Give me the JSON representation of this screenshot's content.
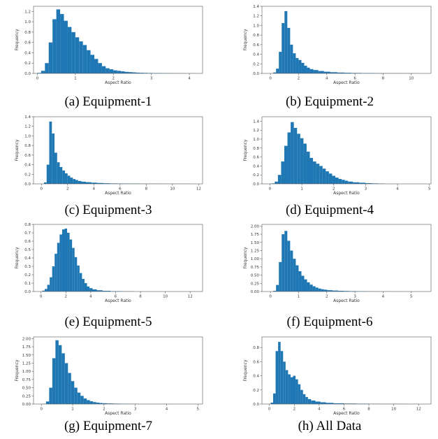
{
  "chart_data": [
    {
      "type": "bar",
      "caption": "(a) Equipment-1",
      "xlabel": "Aspect Ratio",
      "ylabel": "Frequency",
      "xlim": [
        -0.1,
        4.35
      ],
      "ylim": [
        0,
        1.3
      ],
      "xticks": [
        0,
        1,
        2,
        3,
        4
      ],
      "yticks": [
        0.0,
        0.2,
        0.4,
        0.6,
        0.8,
        1.0,
        1.2
      ],
      "x": [
        0.05,
        0.15,
        0.25,
        0.35,
        0.45,
        0.55,
        0.65,
        0.75,
        0.85,
        0.95,
        1.05,
        1.15,
        1.25,
        1.35,
        1.45,
        1.55,
        1.65,
        1.75,
        1.85,
        1.95,
        2.05,
        2.15,
        2.25,
        2.35,
        2.45,
        2.55,
        2.65,
        2.75,
        2.85,
        2.95,
        3.1,
        3.3,
        3.5,
        3.7,
        3.9,
        4.1
      ],
      "values": [
        0.01,
        0.05,
        0.2,
        0.6,
        1.05,
        1.24,
        1.15,
        1.02,
        0.9,
        0.8,
        0.7,
        0.62,
        0.55,
        0.45,
        0.36,
        0.28,
        0.2,
        0.14,
        0.1,
        0.08,
        0.06,
        0.05,
        0.04,
        0.03,
        0.025,
        0.02,
        0.015,
        0.012,
        0.01,
        0.008,
        0.006,
        0.005,
        0.004,
        0.003,
        0.002,
        0.002
      ]
    },
    {
      "type": "bar",
      "caption": "(b) Equipment-2",
      "xlabel": "Aspect Ratio",
      "ylabel": "Frequency",
      "xlim": [
        -0.6,
        11.4
      ],
      "ylim": [
        0,
        1.4
      ],
      "xticks": [
        0,
        2,
        4,
        6,
        8,
        10
      ],
      "yticks": [
        0.0,
        0.2,
        0.4,
        0.6,
        0.8,
        1.0,
        1.2,
        1.4
      ],
      "x": [
        0.3,
        0.5,
        0.7,
        0.9,
        1.1,
        1.3,
        1.5,
        1.7,
        1.9,
        2.1,
        2.3,
        2.5,
        2.7,
        2.9,
        3.2,
        3.6,
        4.0,
        4.5,
        5.0,
        5.5,
        6.0,
        7.0,
        8.0,
        9.0,
        10.0
      ],
      "values": [
        0.02,
        0.1,
        0.45,
        1.05,
        1.3,
        0.95,
        0.6,
        0.42,
        0.32,
        0.28,
        0.22,
        0.16,
        0.12,
        0.09,
        0.07,
        0.05,
        0.035,
        0.025,
        0.018,
        0.013,
        0.009,
        0.006,
        0.004,
        0.003,
        0.002
      ]
    },
    {
      "type": "bar",
      "caption": "(c) Equipment-3",
      "xlabel": "Aspect Ratio",
      "ylabel": "Frequency",
      "xlim": [
        -0.6,
        12.3
      ],
      "ylim": [
        0,
        1.4
      ],
      "xticks": [
        0,
        2,
        4,
        6,
        8,
        10,
        12
      ],
      "yticks": [
        0.0,
        0.2,
        0.4,
        0.6,
        0.8,
        1.0,
        1.2,
        1.4
      ],
      "x": [
        0.3,
        0.5,
        0.7,
        0.9,
        1.1,
        1.3,
        1.5,
        1.7,
        1.9,
        2.1,
        2.3,
        2.5,
        2.7,
        2.9,
        3.2,
        3.6,
        4.0,
        4.5,
        5.0,
        5.5,
        6.0,
        7.0,
        8.0,
        9.0,
        10.0,
        11.0
      ],
      "values": [
        0.03,
        0.4,
        1.3,
        1.05,
        0.65,
        0.45,
        0.35,
        0.28,
        0.22,
        0.17,
        0.13,
        0.1,
        0.08,
        0.06,
        0.045,
        0.035,
        0.025,
        0.018,
        0.013,
        0.009,
        0.007,
        0.005,
        0.004,
        0.003,
        0.002,
        0.002
      ]
    },
    {
      "type": "bar",
      "caption": "(d) Equipment-4",
      "xlabel": "Aspect Ratio",
      "ylabel": "Frequency",
      "xlim": [
        -0.25,
        5.05
      ],
      "ylim": [
        0,
        1.5
      ],
      "xticks": [
        0,
        1,
        2,
        3,
        4,
        5
      ],
      "yticks": [
        0.0,
        0.2,
        0.4,
        0.6,
        0.8,
        1.0,
        1.2,
        1.4
      ],
      "x": [
        0.1,
        0.2,
        0.3,
        0.4,
        0.5,
        0.6,
        0.7,
        0.8,
        0.9,
        1.0,
        1.1,
        1.2,
        1.3,
        1.4,
        1.5,
        1.6,
        1.7,
        1.8,
        1.9,
        2.0,
        2.1,
        2.2,
        2.3,
        2.4,
        2.5,
        2.7,
        2.9,
        3.1,
        3.3,
        3.5
      ],
      "values": [
        0.01,
        0.05,
        0.2,
        0.5,
        0.85,
        1.15,
        1.38,
        1.25,
        1.12,
        1.02,
        0.9,
        0.72,
        0.58,
        0.5,
        0.45,
        0.4,
        0.34,
        0.28,
        0.23,
        0.18,
        0.14,
        0.11,
        0.09,
        0.07,
        0.05,
        0.035,
        0.025,
        0.015,
        0.01,
        0.006
      ]
    },
    {
      "type": "bar",
      "caption": "(e) Equipment-5",
      "xlabel": "Aspect Ratio",
      "ylabel": "Frequency",
      "xlim": [
        -0.6,
        13.0
      ],
      "ylim": [
        0,
        0.8
      ],
      "xticks": [
        0,
        2,
        4,
        6,
        8,
        10,
        12
      ],
      "yticks": [
        0.0,
        0.1,
        0.2,
        0.3,
        0.4,
        0.5,
        0.6,
        0.7,
        0.8
      ],
      "x": [
        0.2,
        0.4,
        0.6,
        0.8,
        1.0,
        1.2,
        1.4,
        1.6,
        1.8,
        2.0,
        2.2,
        2.4,
        2.6,
        2.8,
        3.0,
        3.2,
        3.4,
        3.6,
        3.8,
        4.0,
        4.3,
        4.7,
        5.2,
        6.0,
        7.0
      ],
      "values": [
        0.01,
        0.03,
        0.08,
        0.17,
        0.3,
        0.45,
        0.58,
        0.68,
        0.74,
        0.75,
        0.7,
        0.62,
        0.52,
        0.41,
        0.31,
        0.22,
        0.15,
        0.1,
        0.06,
        0.04,
        0.025,
        0.015,
        0.008,
        0.004,
        0.002
      ]
    },
    {
      "type": "bar",
      "caption": "(f) Equipment-6",
      "xlabel": "Aspect Ratio",
      "ylabel": "Frequency",
      "xlim": [
        -0.3,
        5.7
      ],
      "ylim": [
        0,
        2.05
      ],
      "xticks": [
        0,
        1,
        2,
        3,
        4,
        5
      ],
      "yticks": [
        0.0,
        0.25,
        0.5,
        0.75,
        1.0,
        1.25,
        1.5,
        1.75,
        2.0
      ],
      "x": [
        0.15,
        0.25,
        0.35,
        0.45,
        0.55,
        0.65,
        0.75,
        0.85,
        0.95,
        1.05,
        1.15,
        1.25,
        1.35,
        1.45,
        1.55,
        1.65,
        1.75,
        1.85,
        1.95,
        2.1,
        2.3,
        2.5,
        2.7,
        2.9,
        3.2,
        3.6,
        4.0,
        4.5
      ],
      "values": [
        0.02,
        0.2,
        0.9,
        1.75,
        1.85,
        1.55,
        1.25,
        1.0,
        0.8,
        0.62,
        0.48,
        0.37,
        0.28,
        0.21,
        0.16,
        0.12,
        0.09,
        0.07,
        0.055,
        0.04,
        0.03,
        0.022,
        0.016,
        0.012,
        0.008,
        0.005,
        0.003,
        0.002
      ]
    },
    {
      "type": "bar",
      "caption": "(g) Equipment-7",
      "xlabel": "Aspect Ratio",
      "ylabel": "Frequency",
      "xlim": [
        -0.25,
        5.15
      ],
      "ylim": [
        0,
        2.05
      ],
      "xticks": [
        0,
        1,
        2,
        3,
        4,
        5
      ],
      "yticks": [
        0.0,
        0.25,
        0.5,
        0.75,
        1.0,
        1.25,
        1.5,
        1.75,
        2.0
      ],
      "x": [
        0.1,
        0.2,
        0.3,
        0.4,
        0.5,
        0.6,
        0.7,
        0.8,
        0.9,
        1.0,
        1.1,
        1.2,
        1.3,
        1.4,
        1.5,
        1.6,
        1.7,
        1.8,
        1.9,
        2.0,
        2.2,
        2.4,
        2.6,
        2.8,
        3.0,
        3.3,
        3.6,
        4.0
      ],
      "values": [
        0.01,
        0.08,
        0.5,
        1.4,
        1.95,
        1.8,
        1.55,
        1.25,
        0.95,
        0.7,
        0.5,
        0.35,
        0.25,
        0.17,
        0.12,
        0.085,
        0.06,
        0.045,
        0.033,
        0.025,
        0.018,
        0.013,
        0.009,
        0.007,
        0.005,
        0.003,
        0.002,
        0.002
      ]
    },
    {
      "type": "bar",
      "caption": "(h) All Data",
      "xlabel": "Aspect Ratio",
      "ylabel": "Frequency",
      "xlim": [
        -0.6,
        13.0
      ],
      "ylim": [
        0,
        0.95
      ],
      "xticks": [
        0,
        2,
        4,
        6,
        8,
        10,
        12
      ],
      "yticks": [
        0.0,
        0.2,
        0.4,
        0.6,
        0.8
      ],
      "x": [
        0.2,
        0.4,
        0.6,
        0.8,
        1.0,
        1.2,
        1.4,
        1.6,
        1.8,
        2.0,
        2.2,
        2.4,
        2.6,
        2.8,
        3.0,
        3.2,
        3.5,
        3.9,
        4.3,
        4.8,
        5.5,
        6.5,
        7.5,
        8.5,
        9.5,
        10.5,
        11.5
      ],
      "values": [
        0.02,
        0.15,
        0.75,
        0.88,
        0.75,
        0.6,
        0.48,
        0.42,
        0.38,
        0.4,
        0.35,
        0.28,
        0.2,
        0.14,
        0.1,
        0.07,
        0.05,
        0.035,
        0.025,
        0.017,
        0.011,
        0.007,
        0.005,
        0.003,
        0.002,
        0.002,
        0.001
      ]
    }
  ],
  "style": {
    "bar_color": "#1f77b4",
    "axis_color": "#555555"
  }
}
